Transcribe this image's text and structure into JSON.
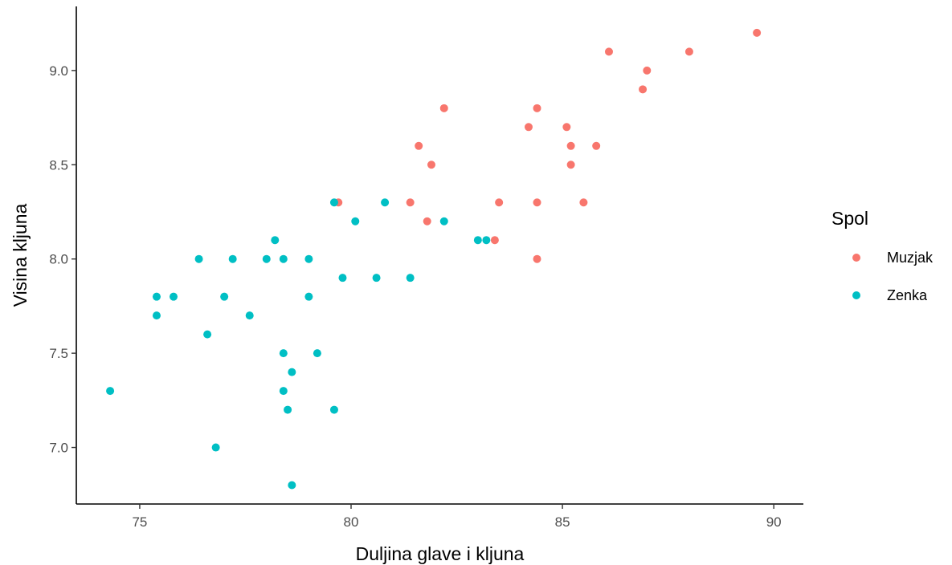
{
  "chart_data": {
    "type": "scatter",
    "xlabel": "Duljina glave i kljuna",
    "ylabel": "Visina kljuna",
    "xlim": [
      73.5,
      90.7
    ],
    "ylim": [
      6.7,
      9.34
    ],
    "xticks": [
      75,
      80,
      85,
      90
    ],
    "xtick_labels": [
      "75",
      "80",
      "85",
      "90"
    ],
    "yticks": [
      7.0,
      7.5,
      8.0,
      8.5,
      9.0
    ],
    "ytick_labels": [
      "7.0",
      "7.5",
      "8.0",
      "8.5",
      "9.0"
    ],
    "grid": false,
    "legend": {
      "title": "Spol",
      "position": "right"
    },
    "series": [
      {
        "name": "Muzjak",
        "color": "#F8766D",
        "points": [
          [
            89.6,
            9.2
          ],
          [
            86.1,
            9.1
          ],
          [
            88.0,
            9.1
          ],
          [
            87.0,
            9.0
          ],
          [
            86.9,
            8.9
          ],
          [
            82.2,
            8.8
          ],
          [
            84.4,
            8.8
          ],
          [
            84.2,
            8.7
          ],
          [
            85.1,
            8.7
          ],
          [
            81.6,
            8.6
          ],
          [
            85.2,
            8.6
          ],
          [
            85.8,
            8.6
          ],
          [
            81.9,
            8.5
          ],
          [
            85.2,
            8.5
          ],
          [
            79.7,
            8.3
          ],
          [
            81.4,
            8.3
          ],
          [
            83.5,
            8.3
          ],
          [
            84.4,
            8.3
          ],
          [
            85.5,
            8.3
          ],
          [
            81.8,
            8.2
          ],
          [
            83.4,
            8.1
          ],
          [
            84.4,
            8.0
          ]
        ]
      },
      {
        "name": "Zenka",
        "color": "#00BFC4",
        "points": [
          [
            79.6,
            8.3
          ],
          [
            80.8,
            8.3
          ],
          [
            80.1,
            8.2
          ],
          [
            82.2,
            8.2
          ],
          [
            83.0,
            8.1
          ],
          [
            83.2,
            8.1
          ],
          [
            78.2,
            8.1
          ],
          [
            76.4,
            8.0
          ],
          [
            77.2,
            8.0
          ],
          [
            78.0,
            8.0
          ],
          [
            78.4,
            8.0
          ],
          [
            79.0,
            8.0
          ],
          [
            79.8,
            7.9
          ],
          [
            80.6,
            7.9
          ],
          [
            81.4,
            7.9
          ],
          [
            75.4,
            7.8
          ],
          [
            75.8,
            7.8
          ],
          [
            77.0,
            7.8
          ],
          [
            79.0,
            7.8
          ],
          [
            75.4,
            7.7
          ],
          [
            77.6,
            7.7
          ],
          [
            76.6,
            7.6
          ],
          [
            78.4,
            7.5
          ],
          [
            79.2,
            7.5
          ],
          [
            78.6,
            7.4
          ],
          [
            74.3,
            7.3
          ],
          [
            78.4,
            7.3
          ],
          [
            78.5,
            7.2
          ],
          [
            79.6,
            7.2
          ],
          [
            76.8,
            7.0
          ],
          [
            78.6,
            6.8
          ]
        ]
      }
    ]
  }
}
